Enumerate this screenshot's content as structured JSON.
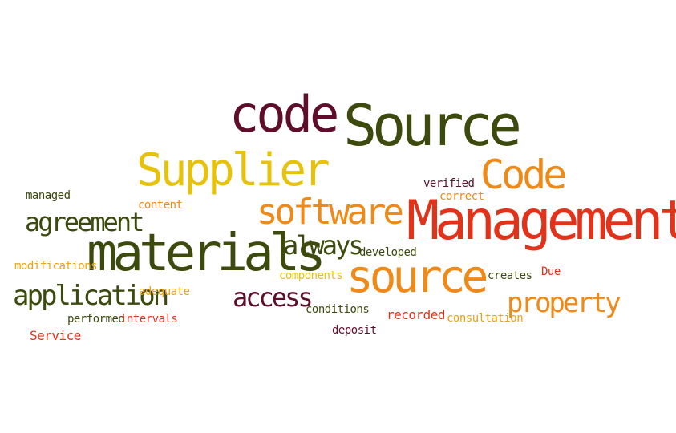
{
  "colors": {
    "background": "#ffffff",
    "wine": "#5e0d2a",
    "olive": "#3c4a0d",
    "yellow": "#e6c20a",
    "orange": "#ef8a18",
    "red": "#e2321a",
    "mango": "#eba30f"
  },
  "words": {
    "code_top": "code",
    "source_top": "Source",
    "supplier": "Supplier",
    "verified": "verified",
    "correct": "correct",
    "code_right": "Code",
    "managed": "managed",
    "content": "content",
    "software": "software",
    "management": "Management",
    "agreement": "agreement",
    "materials": "materials",
    "always": "always",
    "developed": "developed",
    "modifications": "modifications",
    "components": "components",
    "source_mid": "source",
    "creates": "creates",
    "due": "Due",
    "application": "application",
    "adequate": "adequate",
    "access": "access",
    "property": "property",
    "conditions": "conditions",
    "recorded": "recorded",
    "consultation": "consultation",
    "performed": "performed",
    "intervals": "intervals",
    "deposit": "deposit",
    "service": "Service"
  }
}
